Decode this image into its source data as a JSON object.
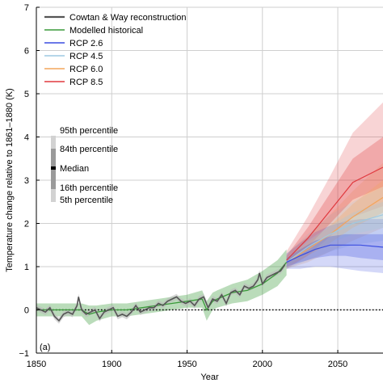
{
  "chart_data": {
    "type": "line",
    "panel_label": "(a)",
    "xlabel": "Year",
    "ylabel": "Temperature change relative to 1861–1880 (K)",
    "xlim": [
      1850,
      2080
    ],
    "ylim": [
      -1,
      7
    ],
    "xticks": [
      1850,
      1900,
      1950,
      2000,
      2050
    ],
    "yticks": [
      -1,
      0,
      1,
      2,
      3,
      4,
      5,
      6,
      7
    ],
    "grid": true,
    "zero_line": "dotted",
    "legend_position": "top-left",
    "series": [
      {
        "name": "Cowtan & Way reconstruction",
        "color": "#555555",
        "x": [
          1850,
          1853,
          1856,
          1859,
          1862,
          1865,
          1868,
          1871,
          1874,
          1877,
          1878,
          1880,
          1883,
          1886,
          1889,
          1892,
          1895,
          1898,
          1901,
          1904,
          1907,
          1910,
          1913,
          1916,
          1919,
          1922,
          1925,
          1928,
          1931,
          1934,
          1937,
          1940,
          1943,
          1946,
          1949,
          1952,
          1955,
          1958,
          1961,
          1964,
          1967,
          1970,
          1973,
          1976,
          1979,
          1982,
          1985,
          1988,
          1991,
          1994,
          1997,
          1998,
          2000,
          2003,
          2006,
          2009,
          2012,
          2015
        ],
        "y": [
          0.05,
          0.0,
          -0.05,
          0.05,
          -0.15,
          -0.25,
          -0.1,
          -0.05,
          -0.1,
          0.1,
          0.3,
          0.0,
          -0.1,
          -0.05,
          0.0,
          -0.2,
          -0.05,
          0.0,
          0.05,
          -0.15,
          -0.1,
          -0.15,
          -0.05,
          0.1,
          -0.05,
          0.0,
          0.05,
          0.05,
          0.15,
          0.1,
          0.2,
          0.25,
          0.3,
          0.2,
          0.15,
          0.2,
          0.1,
          0.25,
          0.3,
          0.05,
          0.25,
          0.2,
          0.35,
          0.15,
          0.4,
          0.45,
          0.35,
          0.55,
          0.5,
          0.55,
          0.7,
          0.85,
          0.6,
          0.75,
          0.8,
          0.85,
          0.9,
          1.05
        ]
      },
      {
        "name": "Modelled historical",
        "color": "#3a9a3a",
        "x": [
          1850,
          1860,
          1870,
          1880,
          1885,
          1890,
          1900,
          1910,
          1920,
          1930,
          1940,
          1950,
          1960,
          1963,
          1967,
          1970,
          1980,
          1990,
          2000,
          2010,
          2016
        ],
        "y": [
          0.0,
          0.0,
          0.0,
          0.0,
          -0.1,
          -0.05,
          0.0,
          0.0,
          0.05,
          0.1,
          0.15,
          0.2,
          0.25,
          0.0,
          0.2,
          0.25,
          0.4,
          0.45,
          0.6,
          0.85,
          1.1
        ],
        "lower": [
          -0.15,
          -0.15,
          -0.15,
          -0.15,
          -0.35,
          -0.25,
          -0.15,
          -0.15,
          -0.1,
          -0.05,
          0.0,
          0.05,
          0.05,
          -0.25,
          0.0,
          0.05,
          0.15,
          0.2,
          0.35,
          0.55,
          0.8
        ],
        "upper": [
          0.15,
          0.15,
          0.15,
          0.15,
          0.1,
          0.1,
          0.15,
          0.15,
          0.2,
          0.25,
          0.3,
          0.35,
          0.45,
          0.2,
          0.4,
          0.45,
          0.6,
          0.7,
          0.9,
          1.15,
          1.4
        ]
      },
      {
        "name": "RCP 2.6",
        "color": "#3a4de0",
        "x": [
          2016,
          2025,
          2035,
          2045,
          2055,
          2065,
          2080
        ],
        "y": [
          1.1,
          1.25,
          1.4,
          1.5,
          1.5,
          1.5,
          1.45
        ],
        "p5": [
          0.95,
          0.95,
          1.0,
          1.0,
          0.95,
          0.9,
          0.85
        ],
        "p16": [
          1.0,
          1.1,
          1.2,
          1.25,
          1.25,
          1.2,
          1.15
        ],
        "p84": [
          1.2,
          1.4,
          1.6,
          1.7,
          1.75,
          1.75,
          1.75
        ],
        "p95": [
          1.3,
          1.55,
          1.8,
          1.95,
          2.05,
          2.1,
          2.1
        ]
      },
      {
        "name": "RCP 4.5",
        "color": "#9ec9e2",
        "x": [
          2016,
          2030,
          2045,
          2060,
          2080
        ],
        "y": [
          1.1,
          1.45,
          1.75,
          2.0,
          2.2
        ],
        "p5": [
          0.95,
          1.15,
          1.35,
          1.5,
          1.6
        ],
        "p16": [
          1.0,
          1.3,
          1.55,
          1.75,
          1.9
        ],
        "p84": [
          1.2,
          1.6,
          1.95,
          2.25,
          2.5
        ],
        "p95": [
          1.3,
          1.75,
          2.2,
          2.5,
          2.85
        ]
      },
      {
        "name": "RCP 6.0",
        "color": "#f3a55b",
        "x": [
          2016,
          2030,
          2045,
          2060,
          2080
        ],
        "y": [
          1.1,
          1.4,
          1.75,
          2.15,
          2.6
        ],
        "p5": [
          0.95,
          1.1,
          1.35,
          1.6,
          1.9
        ],
        "p16": [
          1.0,
          1.25,
          1.55,
          1.9,
          2.25
        ],
        "p84": [
          1.2,
          1.55,
          1.95,
          2.45,
          3.0
        ],
        "p95": [
          1.3,
          1.7,
          2.2,
          2.75,
          3.4
        ]
      },
      {
        "name": "RCP 8.5",
        "color": "#e0393e",
        "x": [
          2016,
          2030,
          2045,
          2060,
          2080
        ],
        "y": [
          1.15,
          1.65,
          2.3,
          2.95,
          3.3
        ],
        "p5": [
          0.95,
          1.25,
          1.7,
          2.15,
          2.4
        ],
        "p16": [
          1.05,
          1.45,
          2.0,
          2.55,
          2.85
        ],
        "p84": [
          1.25,
          1.9,
          2.7,
          3.5,
          4.0
        ],
        "p95": [
          1.35,
          2.15,
          3.1,
          4.1,
          4.8
        ]
      }
    ],
    "percentile_key": {
      "labels": [
        "95th percentile",
        "84th percentile",
        "Median",
        "16th percentile",
        "5th percentile"
      ],
      "colors": [
        "#d2d2d2",
        "#9a9a9a",
        "#000000",
        "#9a9a9a",
        "#d2d2d2"
      ]
    }
  }
}
